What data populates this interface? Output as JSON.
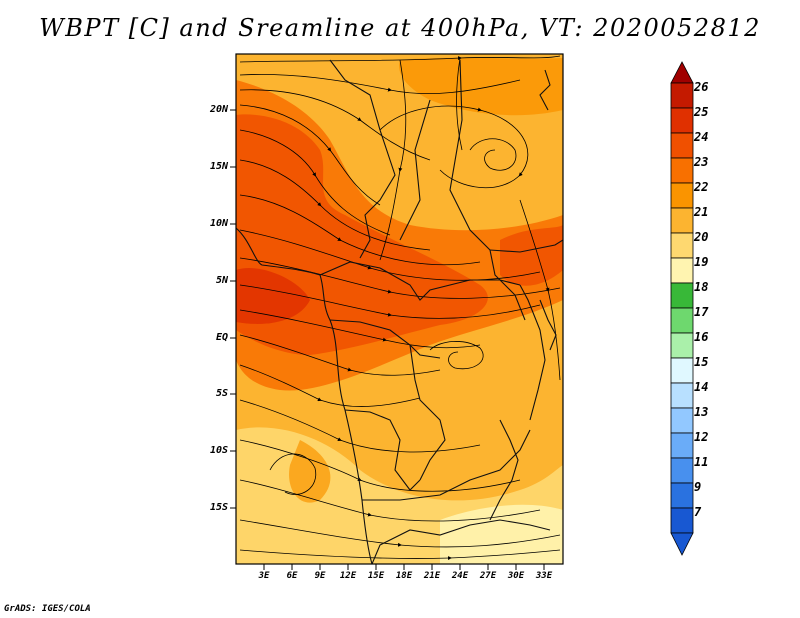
{
  "title": "WBPT [C] and Sreamline at 400hPa, VT: 2020052812",
  "credit": "GrADS: IGES/COLA",
  "map": {
    "lat_labels": [
      "20N",
      "15N",
      "10N",
      "5N",
      "EQ",
      "5S",
      "10S",
      "15S"
    ],
    "lon_labels": [
      "3E",
      "6E",
      "9E",
      "12E",
      "15E",
      "18E",
      "21E",
      "24E",
      "27E",
      "30E",
      "33E"
    ]
  },
  "colorbar": {
    "labels": [
      "26",
      "25",
      "24",
      "23",
      "22",
      "21",
      "20",
      "19",
      "18",
      "17",
      "16",
      "15",
      "14",
      "13",
      "12",
      "11",
      "9",
      "7"
    ],
    "colors": [
      "#a00000",
      "#c41a00",
      "#e03000",
      "#f05000",
      "#f87000",
      "#fa9400",
      "#fcb430",
      "#fed870",
      "#fff4b0",
      "#38b838",
      "#6ed86e",
      "#aaf0aa",
      "#e0f8ff",
      "#b8e0ff",
      "#92c8ff",
      "#6aacf8",
      "#4890ee",
      "#2a72e0",
      "#1858d2"
    ]
  }
}
